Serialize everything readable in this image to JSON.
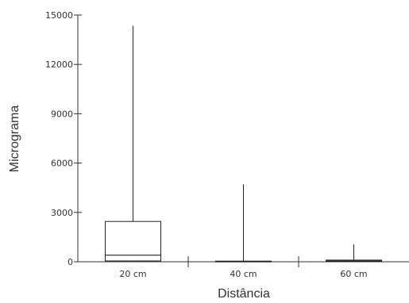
{
  "chart_data": {
    "type": "box",
    "xlabel": "Distância",
    "ylabel": "Micrograma",
    "ylim": [
      0,
      15000
    ],
    "yticks": [
      0,
      3000,
      6000,
      9000,
      12000,
      15000
    ],
    "ytick_labels": [
      "0",
      "3000",
      "6000",
      "9000",
      "12000",
      "15000"
    ],
    "grid": false,
    "categories": [
      "20 cm",
      "40 cm",
      "60 cm"
    ],
    "boxes": [
      {
        "category": "20 cm",
        "min": 0,
        "q1": 50,
        "median": 400,
        "q3": 2450,
        "max": 14350
      },
      {
        "category": "40 cm",
        "min": 0,
        "q1": 10,
        "median": 20,
        "q3": 40,
        "max": 4700
      },
      {
        "category": "60 cm",
        "min": 0,
        "q1": 20,
        "median": 50,
        "q3": 100,
        "max": 1050
      }
    ]
  }
}
